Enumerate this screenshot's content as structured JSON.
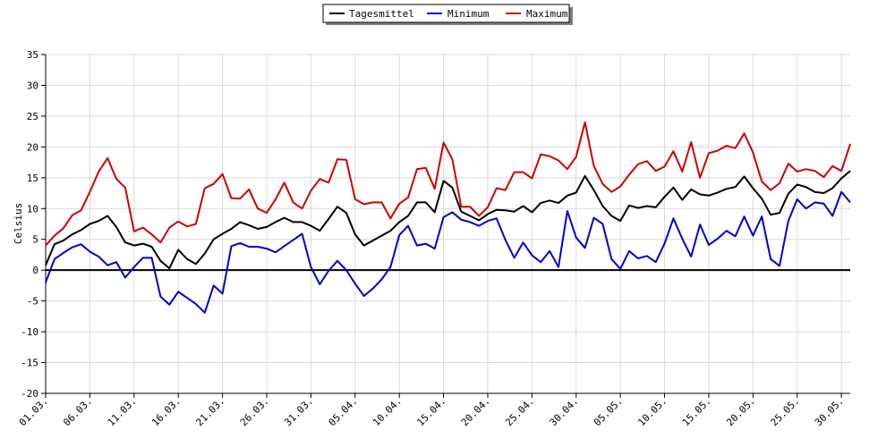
{
  "chart_data": {
    "type": "line",
    "ylabel": "Celsius",
    "ylim": [
      -20,
      35
    ],
    "yticks": [
      -20,
      -15,
      -10,
      -5,
      0,
      5,
      10,
      15,
      20,
      25,
      30,
      35
    ],
    "grid": true,
    "legend_position": "top-center",
    "x_tick_labels": [
      "01.03.",
      "06.03.",
      "11.03.",
      "16.03.",
      "21.03.",
      "26.03.",
      "31.03.",
      "05.04.",
      "10.04.",
      "15.04.",
      "20.04.",
      "25.04.",
      "30.04.",
      "05.05.",
      "10.05.",
      "15.05.",
      "20.05.",
      "25.05.",
      "30.05."
    ],
    "series": [
      {
        "name": "Tagesmittel",
        "color": "#000000",
        "values": [
          0.8,
          4.2,
          4.8,
          5.8,
          6.5,
          7.5,
          8.0,
          8.8,
          7.0,
          4.5,
          4.0,
          4.3,
          3.8,
          1.5,
          0.3,
          3.3,
          1.8,
          1.0,
          2.7,
          5.0,
          5.9,
          6.7,
          7.8,
          7.3,
          6.7,
          7.0,
          7.8,
          8.5,
          7.8,
          7.8,
          7.2,
          6.4,
          8.3,
          10.3,
          9.3,
          5.8,
          4.0,
          4.8,
          5.6,
          6.4,
          7.8,
          8.8,
          11.0,
          11.0,
          9.4,
          14.5,
          13.4,
          9.5,
          8.8,
          8.1,
          9.1,
          9.8,
          9.7,
          9.5,
          10.4,
          9.4,
          10.9,
          11.3,
          10.9,
          12.1,
          12.6,
          15.3,
          13.0,
          10.4,
          8.8,
          8.0,
          10.5,
          10.1,
          10.4,
          10.2,
          11.9,
          13.4,
          11.4,
          13.1,
          12.3,
          12.1,
          12.6,
          13.2,
          13.5,
          15.2,
          13.3,
          11.6,
          9.0,
          9.3,
          12.4,
          13.9,
          13.5,
          12.7,
          12.5,
          13.3,
          14.9,
          16.1
        ]
      },
      {
        "name": "Minimum",
        "color": "#0000cc",
        "values": [
          -2.0,
          1.8,
          2.8,
          3.7,
          4.2,
          3.0,
          2.2,
          0.8,
          1.3,
          -1.2,
          0.5,
          2.0,
          2.0,
          -4.3,
          -5.6,
          -3.5,
          -4.5,
          -5.5,
          -6.9,
          -2.5,
          -3.8,
          3.9,
          4.4,
          3.8,
          3.8,
          3.5,
          2.9,
          3.9,
          4.9,
          5.9,
          0.5,
          -2.3,
          -0.1,
          1.5,
          0.0,
          -2.2,
          -4.2,
          -3.0,
          -1.5,
          0.5,
          5.7,
          7.2,
          4.0,
          4.3,
          3.5,
          8.6,
          9.4,
          8.2,
          7.8,
          7.2,
          8.0,
          8.4,
          4.9,
          2.0,
          4.5,
          2.4,
          1.3,
          3.1,
          0.5,
          9.6,
          5.3,
          3.6,
          8.5,
          7.5,
          1.8,
          0.2,
          3.1,
          1.9,
          2.3,
          1.3,
          4.3,
          8.4,
          5.1,
          2.2,
          7.4,
          4.1,
          5.1,
          6.4,
          5.5,
          8.7,
          5.6,
          8.7,
          1.8,
          0.7,
          8.0,
          11.5,
          10.0,
          11.0,
          10.8,
          8.8,
          12.7,
          11.0
        ]
      },
      {
        "name": "Maximum",
        "color": "#cc0000",
        "values": [
          4.0,
          5.6,
          6.8,
          8.9,
          9.7,
          12.7,
          16.0,
          18.2,
          14.8,
          13.4,
          6.3,
          6.9,
          5.8,
          4.5,
          6.9,
          7.9,
          7.1,
          7.5,
          13.3,
          14.0,
          15.6,
          11.7,
          11.6,
          13.1,
          10.0,
          9.3,
          11.5,
          14.2,
          11.0,
          10.0,
          12.9,
          14.8,
          14.2,
          18.0,
          17.9,
          11.5,
          10.7,
          11.0,
          11.0,
          8.4,
          10.8,
          11.8,
          16.4,
          16.6,
          13.2,
          20.7,
          18.0,
          10.3,
          10.3,
          8.8,
          10.2,
          13.3,
          13.0,
          15.9,
          15.9,
          14.9,
          18.8,
          18.5,
          17.8,
          16.4,
          18.4,
          24.0,
          16.9,
          14.0,
          12.7,
          13.6,
          15.5,
          17.2,
          17.7,
          16.1,
          16.8,
          19.3,
          16.0,
          20.8,
          15.0,
          19.0,
          19.4,
          20.2,
          19.8,
          22.2,
          19.1,
          14.4,
          13.0,
          14.1,
          17.3,
          16.0,
          16.4,
          16.1,
          15.1,
          16.9,
          16.1,
          20.5
        ]
      }
    ]
  }
}
